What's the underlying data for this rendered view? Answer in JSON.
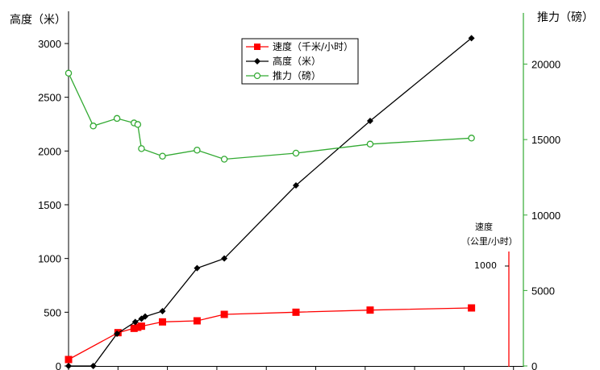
{
  "chart_data": {
    "type": "line",
    "y_left_label": "高度（米）",
    "y_right_label": "推力（磅）",
    "y_left_ticks": [
      "0",
      "500",
      "1000",
      "1500",
      "2000",
      "2500",
      "3000"
    ],
    "y_right_ticks": [
      "0",
      "5000",
      "10000",
      "15000",
      "20000"
    ],
    "y_left_lim": [
      0,
      3300
    ],
    "y_right_lim": [
      0,
      23500
    ],
    "x_lim": [
      0,
      18.4
    ],
    "inset_axis": {
      "label_line1": "速度",
      "label_line2": "（公里/小时）",
      "tick": "1000"
    },
    "legend": {
      "placement": "top-center",
      "items": [
        "速度（千米/小时）",
        "高度（米）",
        "推力（磅）"
      ]
    },
    "series": [
      {
        "name": "速度（千米/小时）",
        "axis": "left",
        "color": "#ff0000",
        "marker": "square",
        "x": [
          0.0,
          2.0,
          2.65,
          2.8,
          2.95,
          3.8,
          5.2,
          6.3,
          9.2,
          12.2,
          16.3
        ],
        "y": [
          60,
          310,
          350,
          360,
          370,
          410,
          420,
          480,
          500,
          520,
          540
        ]
      },
      {
        "name": "高度（米）",
        "axis": "left",
        "color": "#000000",
        "marker": "diamond",
        "x": [
          0.0,
          1.0,
          1.96,
          2.7,
          2.95,
          3.1,
          3.8,
          5.2,
          6.3,
          9.2,
          12.2,
          16.3
        ],
        "y": [
          0,
          0,
          300,
          410,
          440,
          460,
          510,
          910,
          1000,
          1680,
          2280,
          3050
        ]
      },
      {
        "name": "推力（磅）",
        "axis": "right",
        "color": "#33aa33",
        "marker": "circle-open",
        "x": [
          0.0,
          1.0,
          1.96,
          2.65,
          2.8,
          2.95,
          3.8,
          5.2,
          6.3,
          9.2,
          12.2,
          16.3
        ],
        "y": [
          19400,
          15900,
          16400,
          16100,
          16000,
          14400,
          13900,
          14300,
          13700,
          14100,
          14700,
          15100
        ]
      }
    ]
  }
}
